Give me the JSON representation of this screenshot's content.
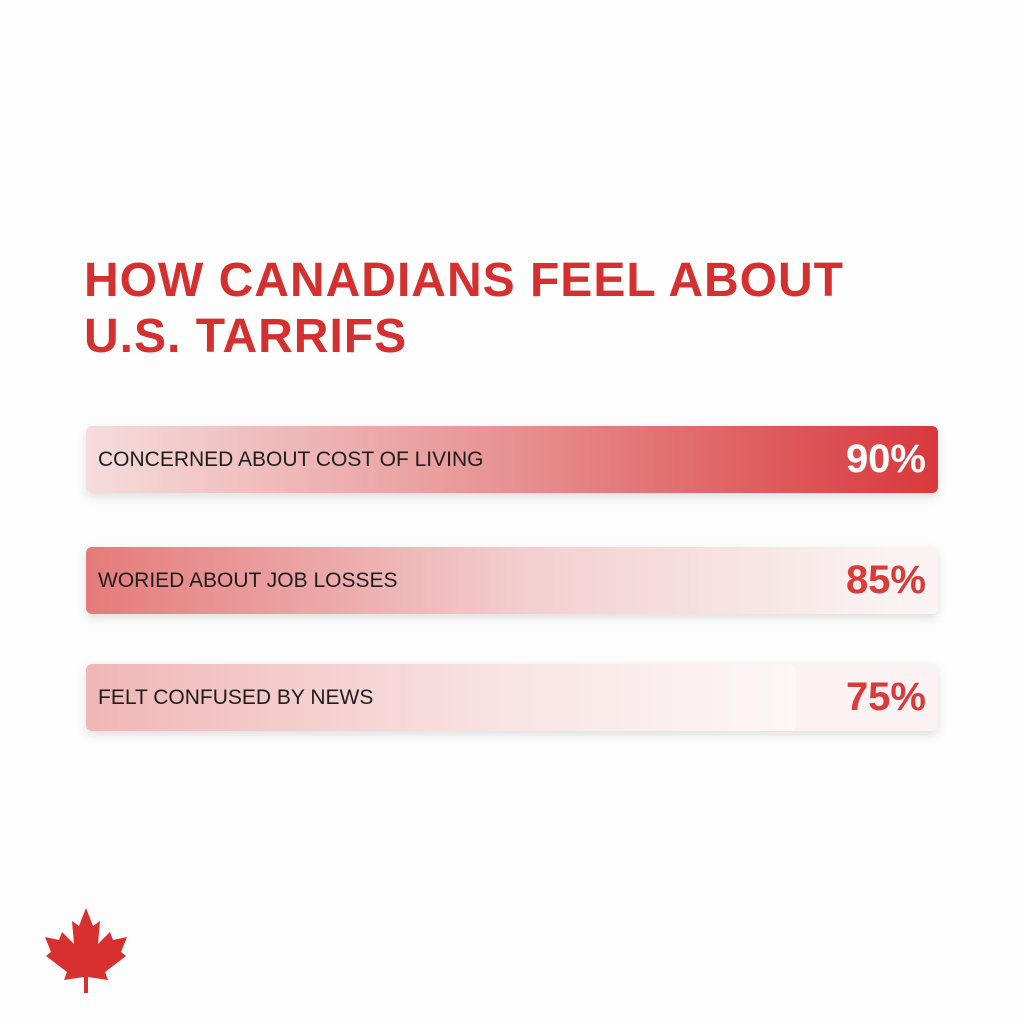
{
  "chart_data": {
    "type": "bar",
    "orientation": "horizontal",
    "title": [
      "HOW CANADIANS FEEL ABOUT",
      "U.S. TARRIFS"
    ],
    "categories": [
      "CONCERNED ABOUT COST OF LIVING",
      "WORIED ABOUT JOB LOSSES",
      "FELT CONFUSED BY NEWS"
    ],
    "values": [
      90,
      85,
      75
    ],
    "value_labels": [
      "90%",
      "85%",
      "75%"
    ],
    "color": "#d93a3a"
  }
}
